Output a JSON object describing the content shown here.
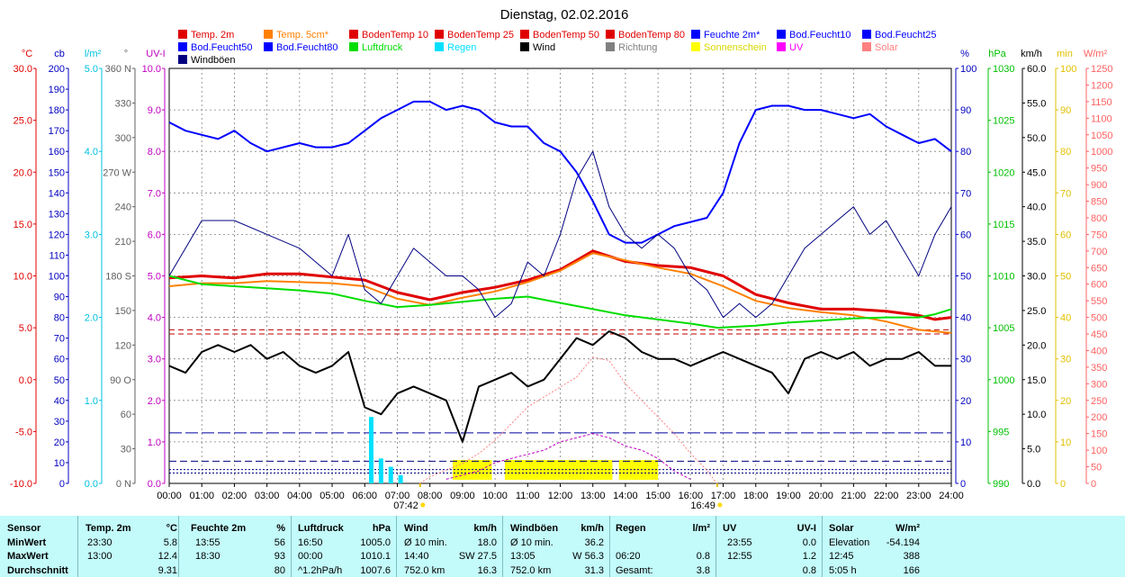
{
  "chart_data": {
    "type": "line",
    "title": "Dienstag, 02.02.2016",
    "x_ticks": [
      "00:00",
      "01:00",
      "02:00",
      "03:00",
      "04:00",
      "05:00",
      "06:00",
      "07:00",
      "08:00",
      "09:00",
      "10:00",
      "11:00",
      "12:00",
      "13:00",
      "14:00",
      "15:00",
      "16:00",
      "17:00",
      "18:00",
      "19:00",
      "20:00",
      "21:00",
      "22:00",
      "23:00",
      "24:00"
    ],
    "xlim": [
      0,
      24
    ],
    "sunrise": "07:42",
    "sunset": "16:49",
    "legend": [
      {
        "label": "Temp. 2m",
        "color": "#e00000"
      },
      {
        "label": "Temp. 5cm*",
        "color": "#ff8000"
      },
      {
        "label": "BodenTemp 10",
        "color": "#e00000"
      },
      {
        "label": "BodenTemp 25",
        "color": "#e00000"
      },
      {
        "label": "BodenTemp 50",
        "color": "#e00000"
      },
      {
        "label": "BodenTemp 80",
        "color": "#e00000"
      },
      {
        "label": "Feuchte 2m*",
        "color": "#0000ff"
      },
      {
        "label": "Bod.Feucht10",
        "color": "#0000ff"
      },
      {
        "label": "Bod.Feucht25",
        "color": "#0000ff"
      },
      {
        "label": "Bod.Feucht50",
        "color": "#0000ff"
      },
      {
        "label": "Bod.Feucht80",
        "color": "#0000ff"
      },
      {
        "label": "Luftdruck",
        "color": "#00dd00"
      },
      {
        "label": "Regen",
        "color": "#00e0ff"
      },
      {
        "label": "Wind",
        "color": "#000000"
      },
      {
        "label": "Richtung",
        "color": "#808080"
      },
      {
        "label": "Sonnenschein",
        "color": "#ffff00"
      },
      {
        "label": "UV",
        "color": "#ff00ff"
      },
      {
        "label": "Solar",
        "color": "#ff8080"
      },
      {
        "label": "Windböen",
        "color": "#000080"
      }
    ],
    "axes_left": [
      {
        "unit": "°C",
        "color": "#e00000",
        "min": -10,
        "max": 30,
        "ticks": [
          "30.0",
          "25.0",
          "20.0",
          "15.0",
          "10.0",
          "5.0",
          "0.0",
          "-5.0",
          "-10.0"
        ]
      },
      {
        "unit": "cb",
        "color": "#0000c0",
        "min": 0,
        "max": 200,
        "ticks": [
          "200",
          "190",
          "180",
          "170",
          "160",
          "150",
          "140",
          "130",
          "120",
          "110",
          "100",
          "90",
          "80",
          "70",
          "60",
          "50",
          "40",
          "30",
          "20",
          "10",
          "0"
        ]
      },
      {
        "unit": "l/m²",
        "color": "#00c0e0",
        "min": 0,
        "max": 5,
        "ticks": [
          "5.0",
          "4.0",
          "3.0",
          "2.0",
          "1.0",
          "0.0"
        ]
      },
      {
        "unit": "°",
        "color": "#606060",
        "min": 0,
        "max": 360,
        "ticks": [
          "360 N",
          "330",
          "300",
          "270 W",
          "240",
          "210",
          "180 S",
          "150",
          "120",
          "90 O",
          "60",
          "30",
          "0 N"
        ]
      },
      {
        "unit": "UV-I",
        "color": "#c000c0",
        "min": 0,
        "max": 10,
        "ticks": [
          "10.0",
          "9.0",
          "8.0",
          "7.0",
          "6.0",
          "5.0",
          "4.0",
          "3.0",
          "2.0",
          "1.0",
          "0.0"
        ]
      }
    ],
    "axes_right": [
      {
        "unit": "%",
        "color": "#0000c0",
        "min": 0,
        "max": 100,
        "ticks": [
          "100",
          "90",
          "80",
          "70",
          "60",
          "50",
          "40",
          "30",
          "20",
          "10",
          "0"
        ]
      },
      {
        "unit": "hPa",
        "color": "#00c000",
        "min": 990,
        "max": 1030,
        "ticks": [
          "1030",
          "1025",
          "1020",
          "1015",
          "1010",
          "1005",
          "1000",
          "995",
          "990"
        ]
      },
      {
        "unit": "km/h",
        "color": "#000000",
        "min": 0,
        "max": 60,
        "ticks": [
          "60.0",
          "55.0",
          "50.0",
          "45.0",
          "40.0",
          "35.0",
          "30.0",
          "25.0",
          "20.0",
          "15.0",
          "10.0",
          "5.0",
          "0.0"
        ]
      },
      {
        "unit": "min",
        "color": "#e0c000",
        "min": 0,
        "max": 100,
        "ticks": [
          "100",
          "90",
          "80",
          "70",
          "60",
          "50",
          "40",
          "30",
          "20",
          "10",
          "0"
        ]
      },
      {
        "unit": "W/m²",
        "color": "#ff6060",
        "min": 0,
        "max": 1250,
        "ticks": [
          "1250",
          "1200",
          "1150",
          "1100",
          "1050",
          "1000",
          "950",
          "900",
          "850",
          "800",
          "750",
          "700",
          "650",
          "600",
          "550",
          "500",
          "450",
          "400",
          "350",
          "300",
          "250",
          "200",
          "150",
          "100",
          "50",
          "0"
        ]
      }
    ],
    "series": [
      {
        "name": "Temp. 2m",
        "axis": "°C",
        "x": [
          0,
          1,
          2,
          3,
          4,
          5,
          6,
          7,
          8,
          9,
          10,
          11,
          12,
          13,
          14,
          15,
          16,
          17,
          18,
          19,
          20,
          21,
          22,
          23,
          23.5,
          24
        ],
        "values": [
          9.8,
          10.0,
          9.8,
          10.2,
          10.2,
          9.9,
          9.6,
          8.4,
          7.7,
          8.4,
          8.9,
          9.6,
          10.6,
          12.4,
          11.4,
          11.0,
          10.8,
          10.0,
          8.2,
          7.4,
          6.8,
          6.8,
          6.6,
          6.2,
          5.8,
          6.0
        ]
      },
      {
        "name": "Temp. 5cm*",
        "axis": "°C",
        "x": [
          0,
          1,
          2,
          3,
          4,
          5,
          6,
          7,
          8,
          9,
          10,
          11,
          12,
          13,
          14,
          15,
          16,
          17,
          18,
          19,
          20,
          21,
          22,
          23,
          24
        ],
        "values": [
          9.0,
          9.3,
          9.3,
          9.5,
          9.4,
          9.3,
          9.0,
          7.8,
          7.2,
          7.9,
          8.5,
          9.4,
          10.5,
          12.2,
          11.5,
          10.8,
          10.2,
          9.0,
          7.6,
          6.9,
          6.5,
          6.2,
          5.6,
          4.8,
          4.5
        ]
      },
      {
        "name": "Feuchte 2m*",
        "axis": "%",
        "x": [
          0,
          0.5,
          1,
          1.5,
          2,
          2.5,
          3,
          3.5,
          4,
          4.5,
          5,
          5.5,
          6,
          6.5,
          7,
          7.5,
          8,
          8.5,
          9,
          9.5,
          10,
          10.5,
          11,
          11.5,
          12,
          12.5,
          13,
          13.5,
          14,
          14.5,
          15,
          15.5,
          16,
          16.5,
          17,
          17.5,
          18,
          18.5,
          19,
          19.5,
          20,
          20.5,
          21,
          21.5,
          22,
          22.5,
          23,
          23.5,
          24
        ],
        "values": [
          87,
          85,
          84,
          83,
          85,
          82,
          80,
          81,
          82,
          81,
          81,
          82,
          85,
          88,
          90,
          92,
          92,
          90,
          91,
          90,
          87,
          86,
          86,
          82,
          80,
          75,
          68,
          60,
          58,
          58,
          60,
          62,
          63,
          64,
          70,
          82,
          90,
          91,
          91,
          90,
          90,
          89,
          88,
          89,
          86,
          84,
          82,
          83,
          80
        ]
      },
      {
        "name": "Luftdruck",
        "axis": "hPa",
        "x": [
          0,
          1,
          2,
          3,
          4,
          5,
          6,
          7,
          8,
          9,
          10,
          11,
          12,
          13,
          14,
          15,
          16,
          16.83,
          18,
          19,
          20,
          21,
          22,
          23,
          23.5,
          24
        ],
        "values": [
          1010.0,
          1009.2,
          1009.0,
          1008.8,
          1008.6,
          1008.3,
          1007.6,
          1007.0,
          1007.2,
          1007.5,
          1007.8,
          1008.0,
          1007.4,
          1006.8,
          1006.2,
          1005.8,
          1005.4,
          1005.0,
          1005.2,
          1005.5,
          1005.7,
          1005.9,
          1006.0,
          1006.0,
          1006.3,
          1006.8
        ]
      },
      {
        "name": "Wind",
        "axis": "km/h",
        "x": [
          0,
          0.5,
          1,
          1.5,
          2,
          2.5,
          3,
          3.5,
          4,
          4.5,
          5,
          5.5,
          6,
          6.5,
          7,
          7.5,
          8,
          8.5,
          9,
          9.5,
          10,
          10.5,
          11,
          11.5,
          12,
          12.5,
          13,
          13.5,
          14,
          14.5,
          15,
          15.5,
          16,
          16.5,
          17,
          17.5,
          18,
          18.5,
          19,
          19.5,
          20,
          20.5,
          21,
          21.5,
          22,
          22.5,
          23,
          23.5,
          24
        ],
        "values": [
          17,
          16,
          19,
          20,
          19,
          20,
          18,
          19,
          17,
          16,
          17,
          19,
          11,
          10,
          13,
          14,
          13,
          12,
          6,
          14,
          15,
          16,
          14,
          15,
          18,
          21,
          20,
          22,
          21,
          19,
          18,
          18,
          17,
          18,
          19,
          18,
          17,
          16,
          13,
          18,
          19,
          18,
          19,
          17,
          18,
          18,
          19,
          17,
          17
        ]
      },
      {
        "name": "Windböen",
        "axis": "km/h",
        "x": [
          0,
          1,
          2,
          3,
          4,
          5,
          5.5,
          6,
          6.5,
          7,
          7.5,
          8,
          8.5,
          9,
          9.5,
          10,
          10.5,
          11,
          11.5,
          12,
          12.5,
          13,
          13.5,
          14,
          14.5,
          15,
          15.5,
          16,
          16.5,
          17,
          17.5,
          18,
          18.5,
          19,
          19.5,
          20,
          20.5,
          21,
          21.5,
          22,
          22.5,
          23,
          23.5,
          24
        ],
        "values": [
          30,
          38,
          38,
          36,
          34,
          30,
          36,
          28,
          26,
          30,
          34,
          32,
          30,
          30,
          28,
          24,
          26,
          32,
          30,
          36,
          44,
          48,
          40,
          36,
          34,
          36,
          34,
          30,
          28,
          24,
          26,
          24,
          26,
          30,
          34,
          36,
          38,
          40,
          36,
          38,
          34,
          30,
          36,
          40
        ]
      },
      {
        "name": "Solar",
        "axis": "W/m²",
        "x": [
          7.7,
          8,
          8.5,
          9,
          9.5,
          10,
          10.5,
          11,
          11.5,
          12,
          12.5,
          13,
          13.5,
          14,
          14.5,
          15,
          15.5,
          16,
          16.5,
          16.8
        ],
        "values": [
          0,
          20,
          40,
          60,
          90,
          130,
          180,
          230,
          260,
          290,
          320,
          380,
          370,
          300,
          250,
          200,
          150,
          90,
          40,
          0
        ]
      },
      {
        "name": "UV",
        "axis": "UV-I",
        "x": [
          8.5,
          9,
          9.5,
          10,
          10.5,
          11,
          11.5,
          12,
          12.5,
          13,
          13.5,
          14,
          14.5,
          15,
          15.5,
          16
        ],
        "values": [
          0.1,
          0.2,
          0.3,
          0.5,
          0.6,
          0.7,
          0.8,
          1.0,
          1.1,
          1.2,
          1.1,
          0.9,
          0.8,
          0.6,
          0.3,
          0.1
        ]
      },
      {
        "name": "Regen",
        "axis": "l/m²",
        "x": [
          6.2,
          6.5,
          6.8,
          7.1
        ],
        "values": [
          0.8,
          0.3,
          0.2,
          0.1
        ]
      }
    ],
    "sunshine_blocks": [
      [
        8.7,
        9.9
      ],
      [
        10.3,
        13.6
      ],
      [
        13.8,
        15.0
      ]
    ]
  },
  "stats": {
    "headers": [
      "Sensor",
      "Temp. 2m",
      "°C",
      "Feuchte 2m",
      "%",
      "Luftdruck",
      "hPa",
      "Wind",
      "km/h",
      "Windböen",
      "km/h",
      "Regen",
      "l/m²",
      "UV",
      "UV-I",
      "Solar",
      "W/m²"
    ],
    "rows": [
      {
        "label": "MinWert",
        "temp_t": "23:30",
        "temp_v": "5.8",
        "hum_t": "13:55",
        "hum_v": "56",
        "pres_t": "16:50",
        "pres_v": "1005.0",
        "wind_t": "Ø 10 min.",
        "wind_v": "18.0",
        "gust_t": "Ø 10 min.",
        "gust_v": "36.2",
        "rain_t": "",
        "rain_v": "",
        "uv_t": "23:55",
        "uv_v": "0.0",
        "sol_t": "Elevation",
        "sol_v": "-54.194"
      },
      {
        "label": "MaxWert",
        "temp_t": "13:00",
        "temp_v": "12.4",
        "hum_t": "18:30",
        "hum_v": "93",
        "pres_t": "00:00",
        "pres_v": "1010.1",
        "wind_t": "14:40",
        "wind_m": "SW 27.5",
        "wind_v": "",
        "gust_t": "13:05",
        "gust_m": "W 56.3",
        "gust_v": "",
        "rain_t": "06:20",
        "rain_v": "0.8",
        "uv_t": "12:55",
        "uv_v": "1.2",
        "sol_t": "12:45",
        "sol_v": "388"
      },
      {
        "label": "Durchschnitt",
        "temp_t": "",
        "temp_v": "9.31",
        "hum_t": "",
        "hum_v": "80",
        "pres_t": "^1.2hPa/h",
        "pres_v": "1007.6",
        "wind_t": "752.0 km",
        "wind_v": "16.3",
        "gust_t": "752.0 km",
        "gust_v": "31.3",
        "rain_t": "Gesamt:",
        "rain_v": "3.8",
        "uv_t": "",
        "uv_v": "0.8",
        "sol_t": "5:05 h",
        "sol_v": "166"
      }
    ]
  }
}
